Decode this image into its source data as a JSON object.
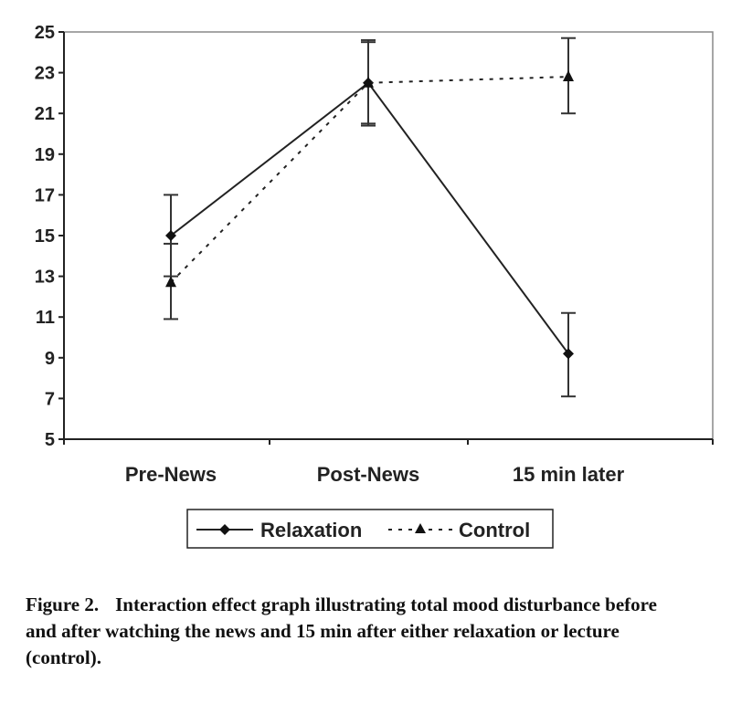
{
  "chart_data": {
    "type": "line",
    "categories": [
      "Pre-News",
      "Post-News",
      "15 min later"
    ],
    "ylim": [
      5,
      25
    ],
    "yticks": [
      5,
      7,
      9,
      11,
      13,
      15,
      17,
      19,
      21,
      23,
      25
    ],
    "grid": false,
    "legend_position": "bottom",
    "series": [
      {
        "name": "Relaxation",
        "style": "solid",
        "marker": "diamond",
        "values": [
          15.0,
          22.5,
          9.2
        ],
        "err_low": [
          13.0,
          20.5,
          7.1
        ],
        "err_high": [
          17.0,
          24.5,
          11.2
        ]
      },
      {
        "name": "Control",
        "style": "dotted",
        "marker": "triangle",
        "values": [
          12.7,
          22.5,
          22.8
        ],
        "err_low": [
          10.9,
          20.4,
          21.0
        ],
        "err_high": [
          14.6,
          24.6,
          24.7
        ]
      }
    ]
  },
  "caption": {
    "label": "Figure 2.",
    "text": "Interaction effect graph illustrating total mood disturbance before and after watching the news and 15 min after either relaxation or lecture (control)."
  }
}
